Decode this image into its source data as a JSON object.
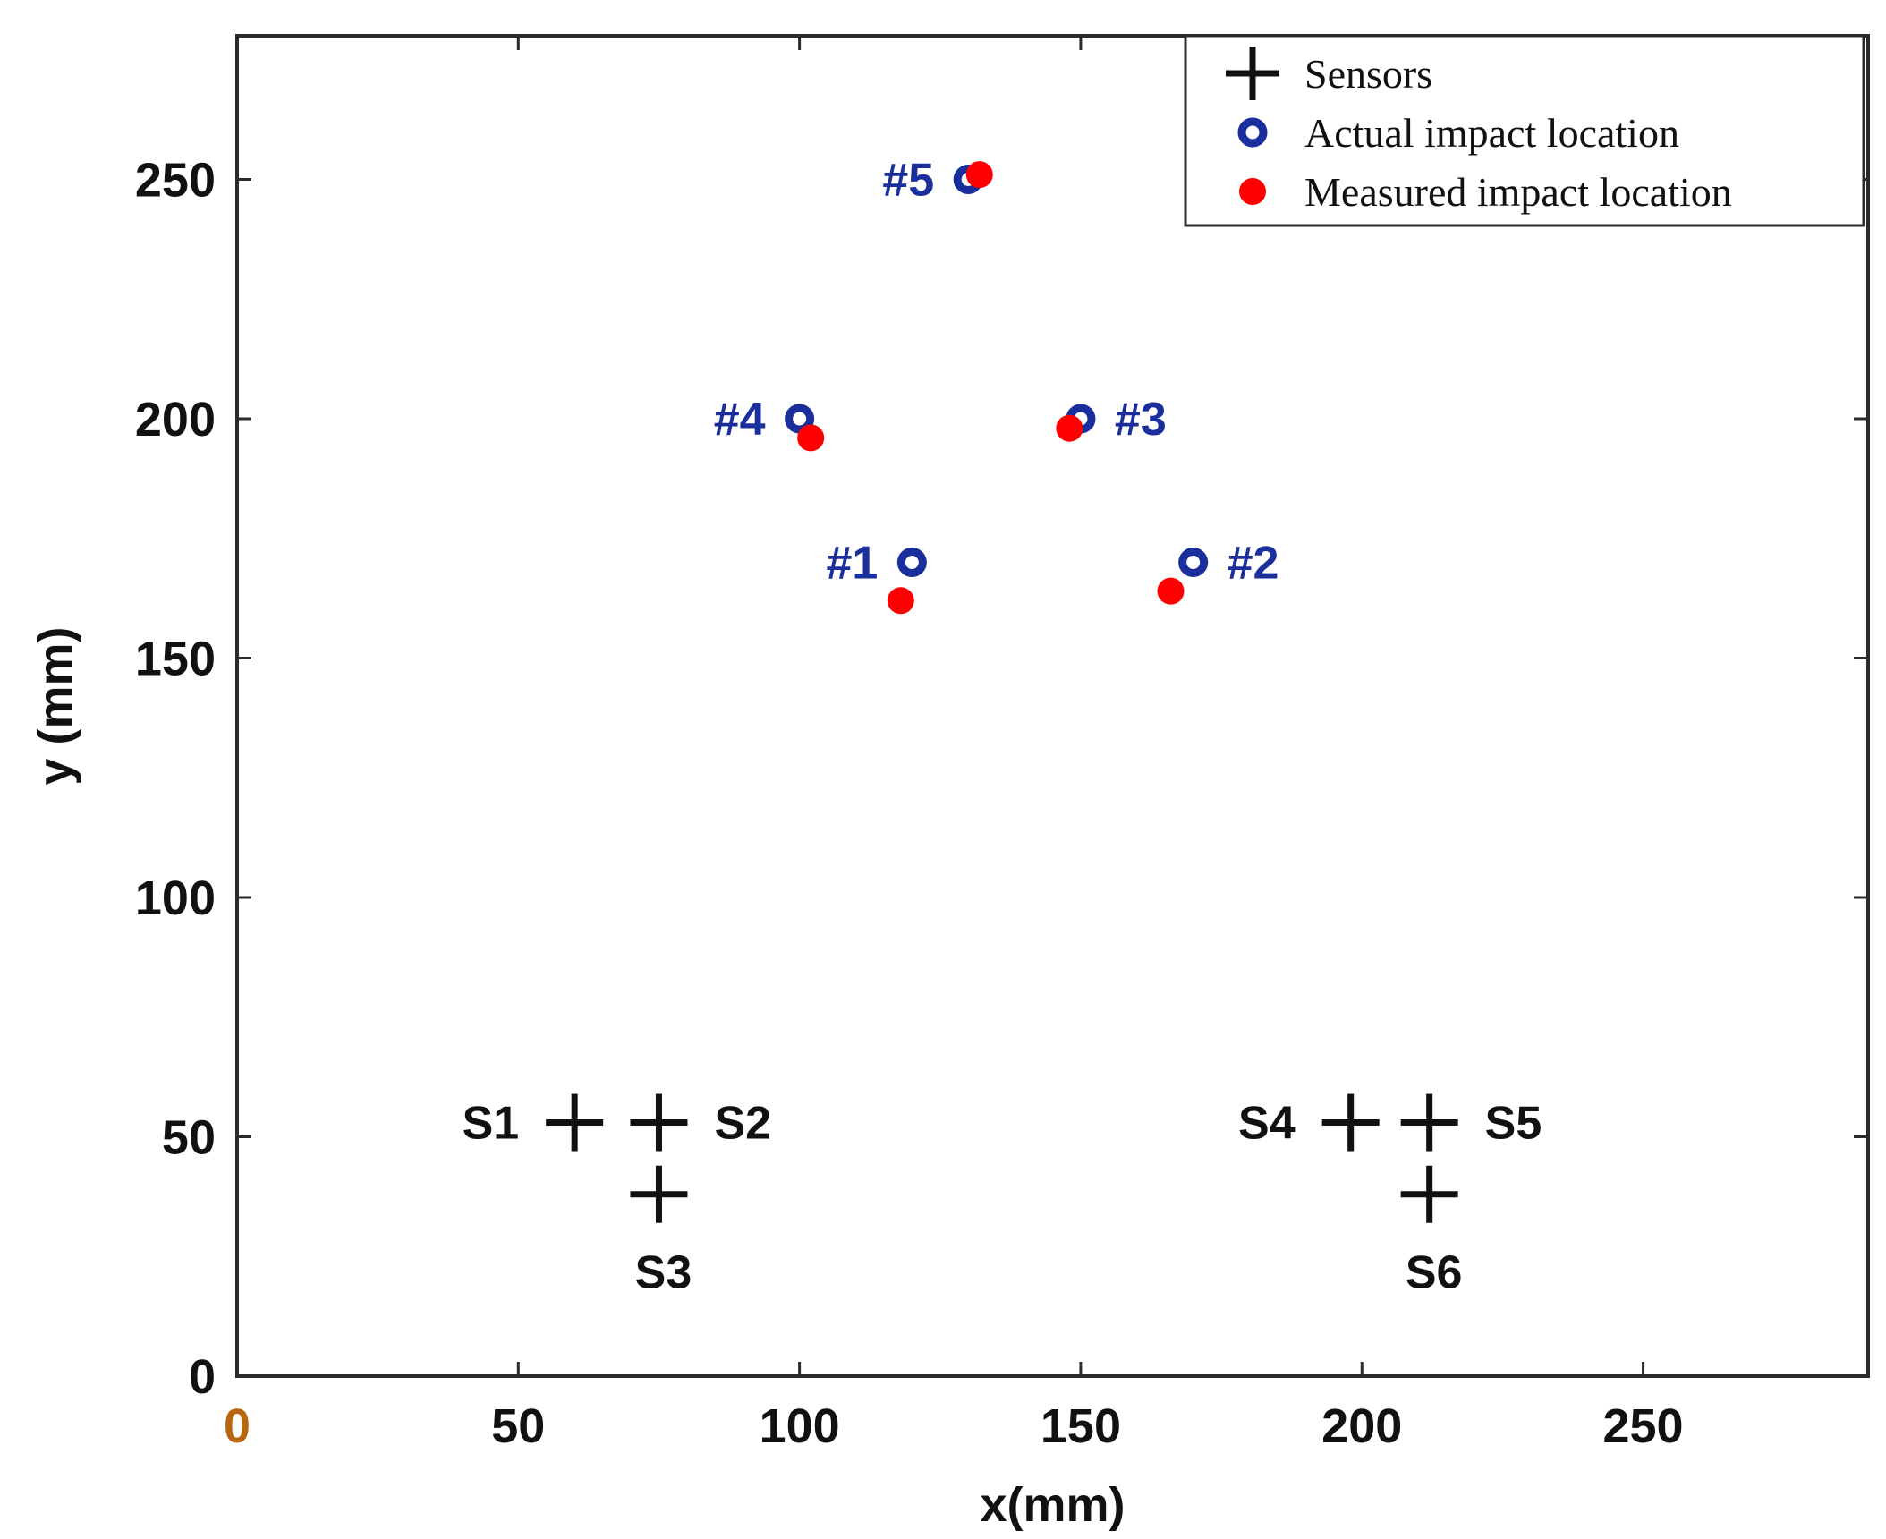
{
  "chart_data": {
    "type": "scatter",
    "title": "",
    "xlabel": "x(mm)",
    "ylabel": "y (mm)",
    "xlim": [
      0,
      290
    ],
    "ylim": [
      0,
      280
    ],
    "xticks": [
      0,
      50,
      100,
      150,
      200,
      250
    ],
    "yticks": [
      0,
      50,
      100,
      150,
      200,
      250
    ],
    "grid": false,
    "legend_position": "top-right",
    "colors": {
      "sensor": "#111111",
      "actual": "#1a2e9c",
      "measured": "#ff0000",
      "point_label": "#1a2e9c",
      "x_zero_tick": "#b8650f"
    },
    "legend": [
      {
        "marker": "plus",
        "label": "Sensors"
      },
      {
        "marker": "open-circle",
        "label": "Actual impact location"
      },
      {
        "marker": "filled-circle",
        "label": "Measured impact location"
      }
    ],
    "series": [
      {
        "name": "Sensors",
        "marker": "plus",
        "points": [
          {
            "x": 60,
            "y": 53,
            "label": "S1",
            "label_side": "left"
          },
          {
            "x": 75,
            "y": 53,
            "label": "S2",
            "label_side": "right"
          },
          {
            "x": 75,
            "y": 38,
            "label": "S3",
            "label_side": "below"
          },
          {
            "x": 198,
            "y": 53,
            "label": "S4",
            "label_side": "left"
          },
          {
            "x": 212,
            "y": 53,
            "label": "S5",
            "label_side": "right"
          },
          {
            "x": 212,
            "y": 38,
            "label": "S6",
            "label_side": "below"
          }
        ]
      },
      {
        "name": "Actual impact location",
        "marker": "open-circle",
        "points": [
          {
            "x": 120,
            "y": 170,
            "label": "#1",
            "label_side": "left"
          },
          {
            "x": 170,
            "y": 170,
            "label": "#2",
            "label_side": "right"
          },
          {
            "x": 150,
            "y": 200,
            "label": "#3",
            "label_side": "right"
          },
          {
            "x": 100,
            "y": 200,
            "label": "#4",
            "label_side": "left"
          },
          {
            "x": 130,
            "y": 250,
            "label": "#5",
            "label_side": "left"
          }
        ]
      },
      {
        "name": "Measured impact location",
        "marker": "filled-circle",
        "points": [
          {
            "x": 118,
            "y": 162
          },
          {
            "x": 166,
            "y": 164
          },
          {
            "x": 148,
            "y": 198
          },
          {
            "x": 102,
            "y": 196
          },
          {
            "x": 132,
            "y": 251
          }
        ]
      }
    ]
  }
}
